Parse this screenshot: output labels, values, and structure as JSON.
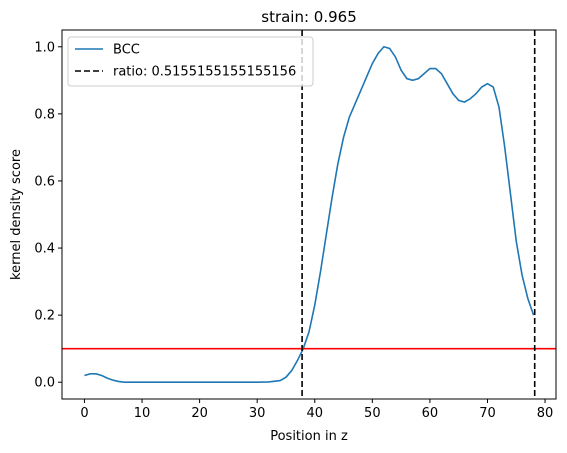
{
  "chart_data": {
    "type": "line",
    "title": "strain: 0.965",
    "xlabel": "Position in z",
    "ylabel": "kernel density score",
    "xlim": [
      -3.9,
      81.9
    ],
    "ylim": [
      -0.05,
      1.05
    ],
    "xticks": [
      0,
      10,
      20,
      30,
      40,
      50,
      60,
      70,
      80
    ],
    "yticks": [
      0.0,
      0.2,
      0.4,
      0.6,
      0.8,
      1.0
    ],
    "xtick_labels": [
      "0",
      "10",
      "20",
      "30",
      "40",
      "50",
      "60",
      "70",
      "80"
    ],
    "ytick_labels": [
      "0.0",
      "0.2",
      "0.4",
      "0.6",
      "0.8",
      "1.0"
    ],
    "grid": false,
    "legend_position": "top-left",
    "series": [
      {
        "name": "BCC",
        "color": "#1f77b4",
        "style": "solid",
        "x": [
          0,
          1,
          2,
          3,
          4,
          5,
          6,
          7,
          8,
          10,
          15,
          20,
          25,
          30,
          32,
          34,
          35,
          36,
          37,
          38,
          39,
          40,
          41,
          42,
          43,
          44,
          45,
          46,
          47,
          48,
          49,
          50,
          51,
          52,
          53,
          54,
          55,
          56,
          57,
          58,
          59,
          60,
          61,
          62,
          63,
          64,
          65,
          66,
          67,
          68,
          69,
          70,
          71,
          72,
          73,
          74,
          75,
          76,
          77,
          78
        ],
        "y": [
          0.02,
          0.025,
          0.025,
          0.02,
          0.012,
          0.006,
          0.002,
          0.0,
          0.0,
          0.0,
          0.0,
          0.0,
          0.0,
          0.0,
          0.001,
          0.005,
          0.015,
          0.035,
          0.065,
          0.1,
          0.15,
          0.23,
          0.33,
          0.44,
          0.55,
          0.65,
          0.73,
          0.79,
          0.83,
          0.87,
          0.91,
          0.95,
          0.98,
          1.0,
          0.995,
          0.97,
          0.93,
          0.905,
          0.9,
          0.905,
          0.92,
          0.935,
          0.935,
          0.92,
          0.89,
          0.86,
          0.84,
          0.835,
          0.845,
          0.86,
          0.88,
          0.89,
          0.88,
          0.82,
          0.7,
          0.56,
          0.42,
          0.32,
          0.25,
          0.2
        ]
      },
      {
        "name": "ratio: 0.5155155155155156",
        "color": "#000000",
        "style": "dashed",
        "vlines": [
          37.8,
          78.2
        ]
      }
    ],
    "hlines": [
      {
        "y": 0.1,
        "color": "#ff0000"
      }
    ]
  }
}
